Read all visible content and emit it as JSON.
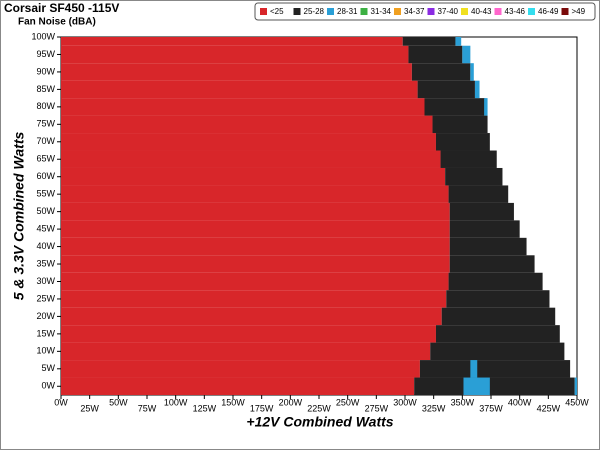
{
  "chart_data": {
    "type": "region",
    "title": "Corsair SF450 -115V",
    "subtitle": "Fan Noise (dBA)",
    "x_label": "+12V Combined Watts",
    "y_label": "5 & 3.3V Combined Watts",
    "xlim": [
      0,
      450
    ],
    "ylim": [
      -2.5,
      100
    ],
    "row_height": 5,
    "xticks": [
      {
        "value": 0,
        "label": "0W"
      },
      {
        "value": 25,
        "label": "25W"
      },
      {
        "value": 50,
        "label": "50W"
      },
      {
        "value": 75,
        "label": "75W"
      },
      {
        "value": 100,
        "label": "100W"
      },
      {
        "value": 125,
        "label": "125W"
      },
      {
        "value": 150,
        "label": "150W"
      },
      {
        "value": 175,
        "label": "175W"
      },
      {
        "value": 200,
        "label": "200W"
      },
      {
        "value": 225,
        "label": "225W"
      },
      {
        "value": 250,
        "label": "250W"
      },
      {
        "value": 275,
        "label": "275W"
      },
      {
        "value": 300,
        "label": "300W"
      },
      {
        "value": 325,
        "label": "325W"
      },
      {
        "value": 350,
        "label": "350W"
      },
      {
        "value": 375,
        "label": "375W"
      },
      {
        "value": 400,
        "label": "400W"
      },
      {
        "value": 425,
        "label": "425W"
      },
      {
        "value": 450,
        "label": "450W"
      }
    ],
    "yticks": [
      {
        "value": 0,
        "label": "0W"
      },
      {
        "value": 5,
        "label": "5W"
      },
      {
        "value": 10,
        "label": "10W"
      },
      {
        "value": 15,
        "label": "15W"
      },
      {
        "value": 20,
        "label": "20W"
      },
      {
        "value": 25,
        "label": "25W"
      },
      {
        "value": 30,
        "label": "30W"
      },
      {
        "value": 35,
        "label": "35W"
      },
      {
        "value": 40,
        "label": "40W"
      },
      {
        "value": 45,
        "label": "45W"
      },
      {
        "value": 50,
        "label": "50W"
      },
      {
        "value": 55,
        "label": "55W"
      },
      {
        "value": 60,
        "label": "60W"
      },
      {
        "value": 65,
        "label": "65W"
      },
      {
        "value": 70,
        "label": "70W"
      },
      {
        "value": 75,
        "label": "75W"
      },
      {
        "value": 80,
        "label": "80W"
      },
      {
        "value": 85,
        "label": "85W"
      },
      {
        "value": 90,
        "label": "90W"
      },
      {
        "value": 95,
        "label": "95W"
      },
      {
        "value": 100,
        "label": "100W"
      }
    ],
    "series": [
      {
        "name": "<25",
        "color": "#d8262a",
        "segments": [
          [
            100,
            0,
            298
          ],
          [
            95,
            0,
            303
          ],
          [
            90,
            0,
            306
          ],
          [
            85,
            0,
            311
          ],
          [
            80,
            0,
            317
          ],
          [
            75,
            0,
            324
          ],
          [
            70,
            0,
            327
          ],
          [
            65,
            0,
            331
          ],
          [
            60,
            0,
            335
          ],
          [
            55,
            0,
            338
          ],
          [
            50,
            0,
            339
          ],
          [
            45,
            0,
            339
          ],
          [
            40,
            0,
            339
          ],
          [
            35,
            0,
            339
          ],
          [
            30,
            0,
            338
          ],
          [
            25,
            0,
            336
          ],
          [
            20,
            0,
            332
          ],
          [
            15,
            0,
            327
          ],
          [
            10,
            0,
            322
          ],
          [
            5,
            0,
            313
          ],
          [
            0,
            0,
            308
          ]
        ]
      },
      {
        "name": "25-28",
        "color": "#222222",
        "segments": [
          [
            100,
            298,
            344
          ],
          [
            95,
            303,
            350
          ],
          [
            90,
            306,
            357
          ],
          [
            85,
            311,
            361
          ],
          [
            80,
            317,
            370
          ],
          [
            75,
            324,
            372
          ],
          [
            70,
            327,
            374
          ],
          [
            65,
            331,
            380
          ],
          [
            60,
            335,
            385
          ],
          [
            55,
            338,
            390
          ],
          [
            50,
            339,
            395
          ],
          [
            45,
            339,
            400
          ],
          [
            40,
            339,
            406
          ],
          [
            35,
            339,
            413
          ],
          [
            30,
            338,
            420
          ],
          [
            25,
            336,
            426
          ],
          [
            20,
            332,
            431
          ],
          [
            15,
            327,
            435
          ],
          [
            10,
            322,
            439
          ],
          [
            5,
            313,
            444
          ],
          [
            0,
            308,
            448
          ]
        ]
      },
      {
        "name": "28-31",
        "color": "#2a9fd6",
        "segments": [
          [
            100,
            344,
            349
          ],
          [
            95,
            350,
            357
          ],
          [
            90,
            357,
            360
          ],
          [
            85,
            361,
            365
          ],
          [
            80,
            369,
            372
          ],
          [
            5,
            357,
            363
          ],
          [
            0,
            351,
            374
          ],
          [
            0,
            448,
            453
          ]
        ]
      },
      {
        "name": "31-34",
        "color": "#3cb043",
        "segments": []
      },
      {
        "name": "34-37",
        "color": "#f0a020",
        "segments": []
      },
      {
        "name": "37-40",
        "color": "#8a2be2",
        "segments": []
      },
      {
        "name": "40-43",
        "color": "#f0e020",
        "segments": []
      },
      {
        "name": "43-46",
        "color": "#ff66cc",
        "segments": []
      },
      {
        "name": "46-49",
        "color": "#33ddee",
        "segments": []
      },
      {
        "name": ">49",
        "color": "#7a0a0a",
        "segments": []
      }
    ]
  }
}
